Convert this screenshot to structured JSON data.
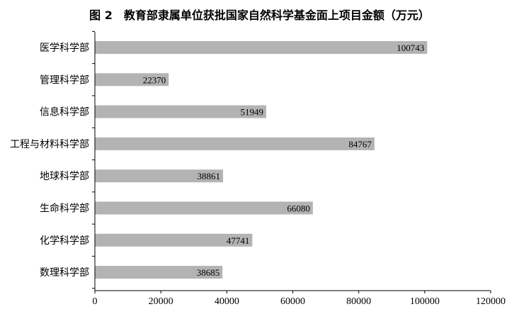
{
  "chart_data": {
    "type": "bar",
    "orientation": "horizontal",
    "title": "图 2　教育部隶属单位获批国家自然科学基金面上项目金额（万元）",
    "categories": [
      "医学科学部",
      "管理科学部",
      "信息科学部",
      "工程与材料科学部",
      "地球科学部",
      "生命科学部",
      "化学科学部",
      "数理科学部"
    ],
    "values": [
      100743,
      22370,
      51949,
      84767,
      38861,
      66080,
      47741,
      38685
    ],
    "xlim": [
      0,
      120000
    ],
    "xticks": [
      "0",
      "20000",
      "40000",
      "60000",
      "80000",
      "100000",
      "120000"
    ],
    "xlabel": "",
    "ylabel": "",
    "bar_color": "#b3b3b3",
    "grid": false,
    "legend": "none"
  }
}
